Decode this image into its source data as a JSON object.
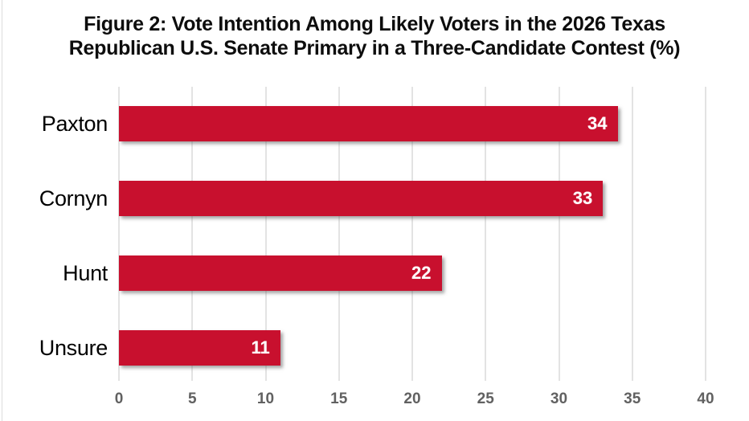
{
  "figure": {
    "title_line1": "Figure 2: Vote Intention Among Likely Voters in the 2026 Texas",
    "title_line2": "Republican U.S. Senate Primary in a Three-Candidate Contest (%)"
  },
  "chart_data": {
    "type": "bar",
    "orientation": "horizontal",
    "title": "Figure 2: Vote Intention Among Likely Voters in the 2026 Texas Republican U.S. Senate Primary in a Three-Candidate Contest (%)",
    "categories": [
      "Paxton",
      "Cornyn",
      "Hunt",
      "Unsure"
    ],
    "values": [
      34,
      33,
      22,
      11
    ],
    "value_labels": [
      "34",
      "33",
      "22",
      "11"
    ],
    "xlabel": "",
    "ylabel": "",
    "xlim": [
      0,
      40
    ],
    "x_ticks": [
      "0",
      "5",
      "10",
      "15",
      "20",
      "25",
      "30",
      "35",
      "40"
    ],
    "grid": "vertical-gridlines-on",
    "legend": "none",
    "colors": {
      "bar": "#C8102E",
      "value_label": "#FFFFFF",
      "category_label": "#000000",
      "tick_label": "#616161",
      "gridline": "#E3E3E3",
      "title": "#0D0D0D",
      "background": "#FFFFFF"
    }
  }
}
